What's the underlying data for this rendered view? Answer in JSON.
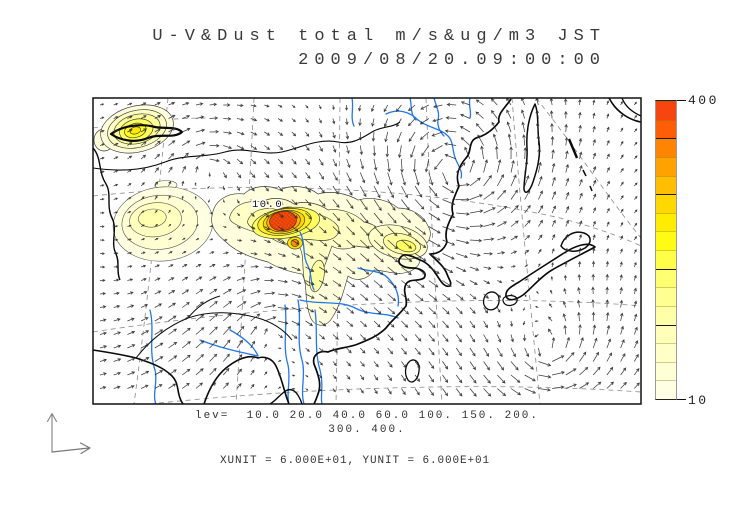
{
  "title": {
    "line1": "U-V&Dust total m/s&ug/m3 JST",
    "line2": "2009/08/20.09:00:00"
  },
  "map": {
    "contour_label": "10.0"
  },
  "colorbar": {
    "max_label": "400",
    "min_label": "10",
    "colors": [
      "#FFFFE4",
      "#FFFFD6",
      "#FFFFC8",
      "#FFFFBA",
      "#FFFFA8",
      "#FFFF92",
      "#FFFF70",
      "#FFFF48",
      "#FFFB14",
      "#FFEC00",
      "#FFD800",
      "#FFBE00",
      "#FFA200",
      "#FF8400",
      "#FF5E07",
      "#F6450F"
    ],
    "major_tick_indices": [
      3,
      6,
      10,
      13
    ]
  },
  "footer": {
    "levels_line1": "lev=  10.0 20.0 40.0 60.0 100. 150. 200.",
    "levels_line2": "300. 400.",
    "units_line": "XUNIT = 6.000E+01, YUNIT = 6.000E+01"
  },
  "chart_data": {
    "type": "heatmap",
    "title": "U-V&Dust total m/s&ug/m3 JST",
    "datetime": "2009/08/20.09:00:00",
    "shading_variable": "Dust total (ug/m3)",
    "vector_variable": "U-V wind (m/s)",
    "timezone": "JST",
    "contour_levels": [
      10.0,
      20.0,
      40.0,
      60.0,
      100,
      150,
      200,
      300,
      400
    ],
    "colorbar_range": [
      10,
      400
    ],
    "xunit": "6.000E+01",
    "yunit": "6.000E+01",
    "legend_position": "right",
    "notes": "Filled dust-concentration contours with overlaid wind-vector grid, coastlines, rivers and dashed graticule; maximum dust cell (>400 ug/m3, cross-hatched red) near map center with secondary yellow plumes to the northwest and west"
  }
}
